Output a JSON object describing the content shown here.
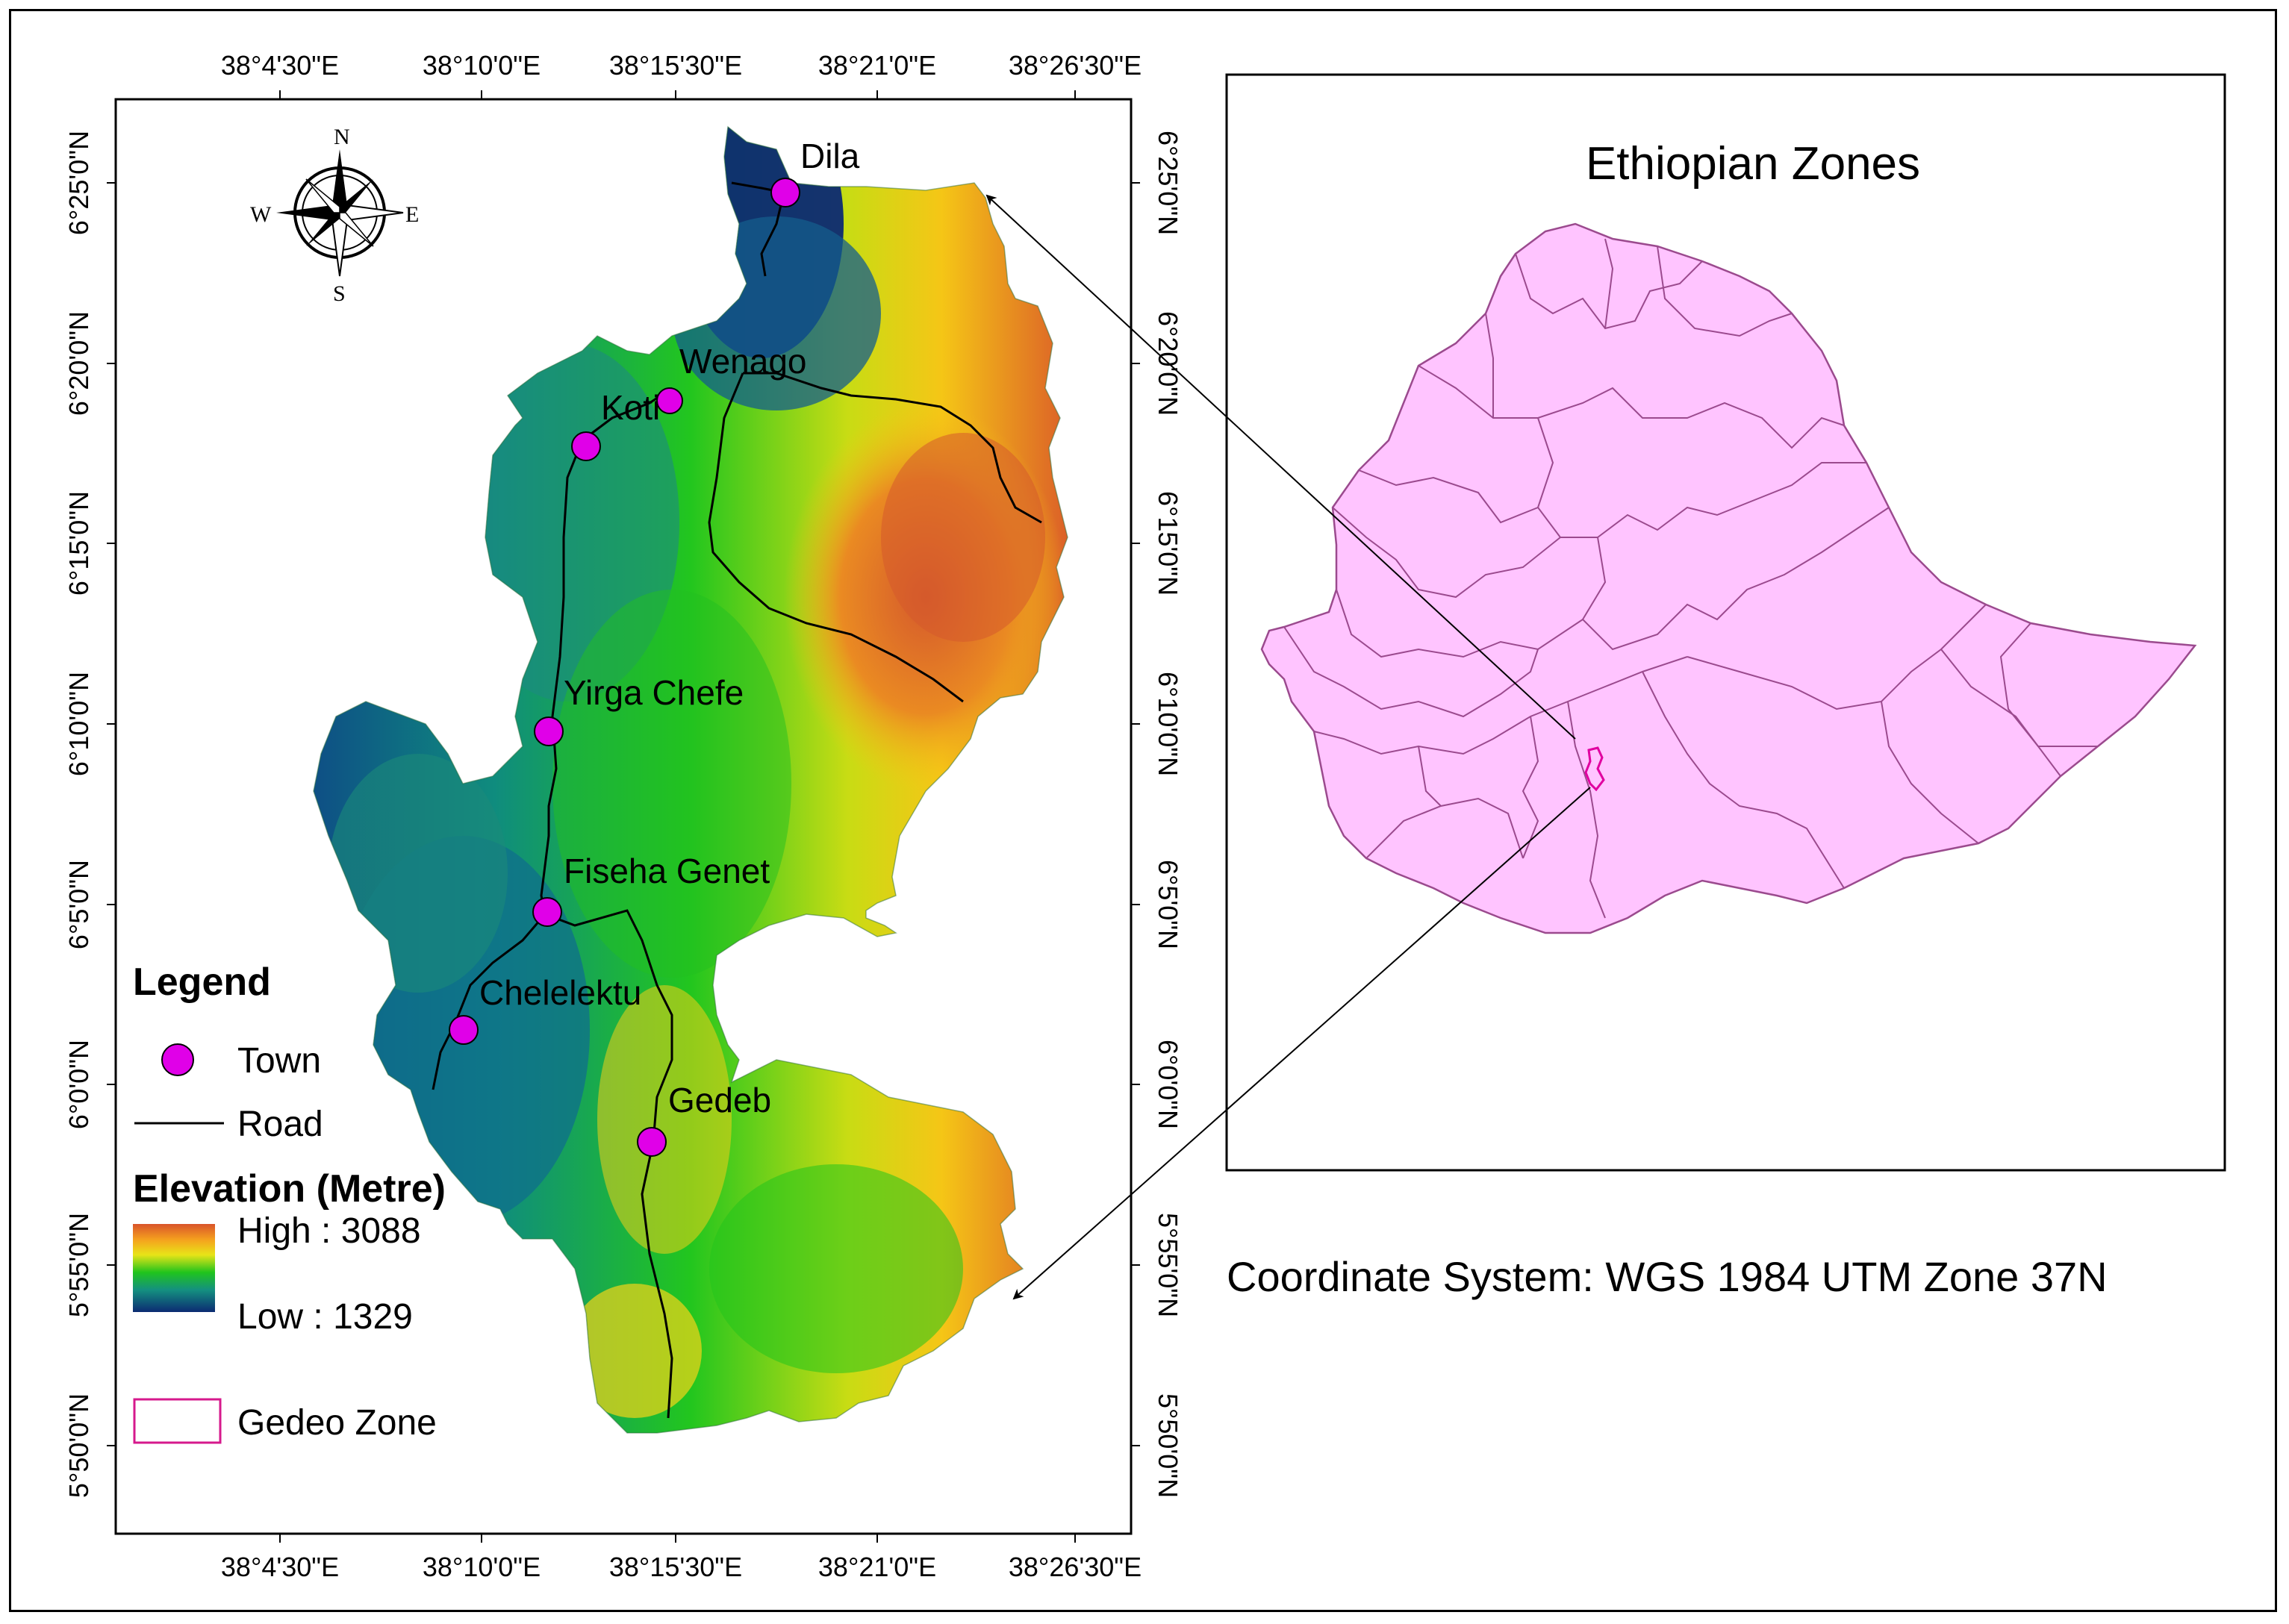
{
  "map": {
    "x_ticks": [
      "38°4'30\"E",
      "38°10'0\"E",
      "38°15'30\"E",
      "38°21'0\"E",
      "38°26'30\"E"
    ],
    "y_ticks": [
      "6°25'0\"N",
      "6°20'0\"N",
      "6°15'0\"N",
      "6°10'0\"N",
      "6°5'0\"N",
      "6°0'0\"N",
      "5°55'0\"N",
      "5°50'0\"N"
    ],
    "towns": [
      {
        "name": "Dila"
      },
      {
        "name": "Wenago"
      },
      {
        "name": "Koti"
      },
      {
        "name": "Yirga Chefe"
      },
      {
        "name": "Fiseha Genet"
      },
      {
        "name": "Chelelektu"
      },
      {
        "name": "Gedeb"
      }
    ],
    "compass": {
      "n": "N",
      "s": "S",
      "e": "E",
      "w": "W"
    }
  },
  "legend": {
    "title": "Legend",
    "town": "Town",
    "road": "Road",
    "elevation_title": "Elevation (Metre)",
    "high": "High : 3088",
    "low": "Low : 1329",
    "zone": "Gedeo Zone"
  },
  "inset": {
    "title": "Ethiopian Zones"
  },
  "coordinate_system": "Coordinate System: WGS 1984 UTM Zone 37N",
  "colors": {
    "town": "#e000e8",
    "zone_outline": "#d6198c",
    "inset_fill": "#ffc4ff",
    "inset_stroke": "#9b4a8e",
    "elev_high": "#d9542a",
    "elev_mid_yellow": "#f2e21a",
    "elev_mid_green": "#19c31c",
    "elev_low": "#0c2a72"
  }
}
